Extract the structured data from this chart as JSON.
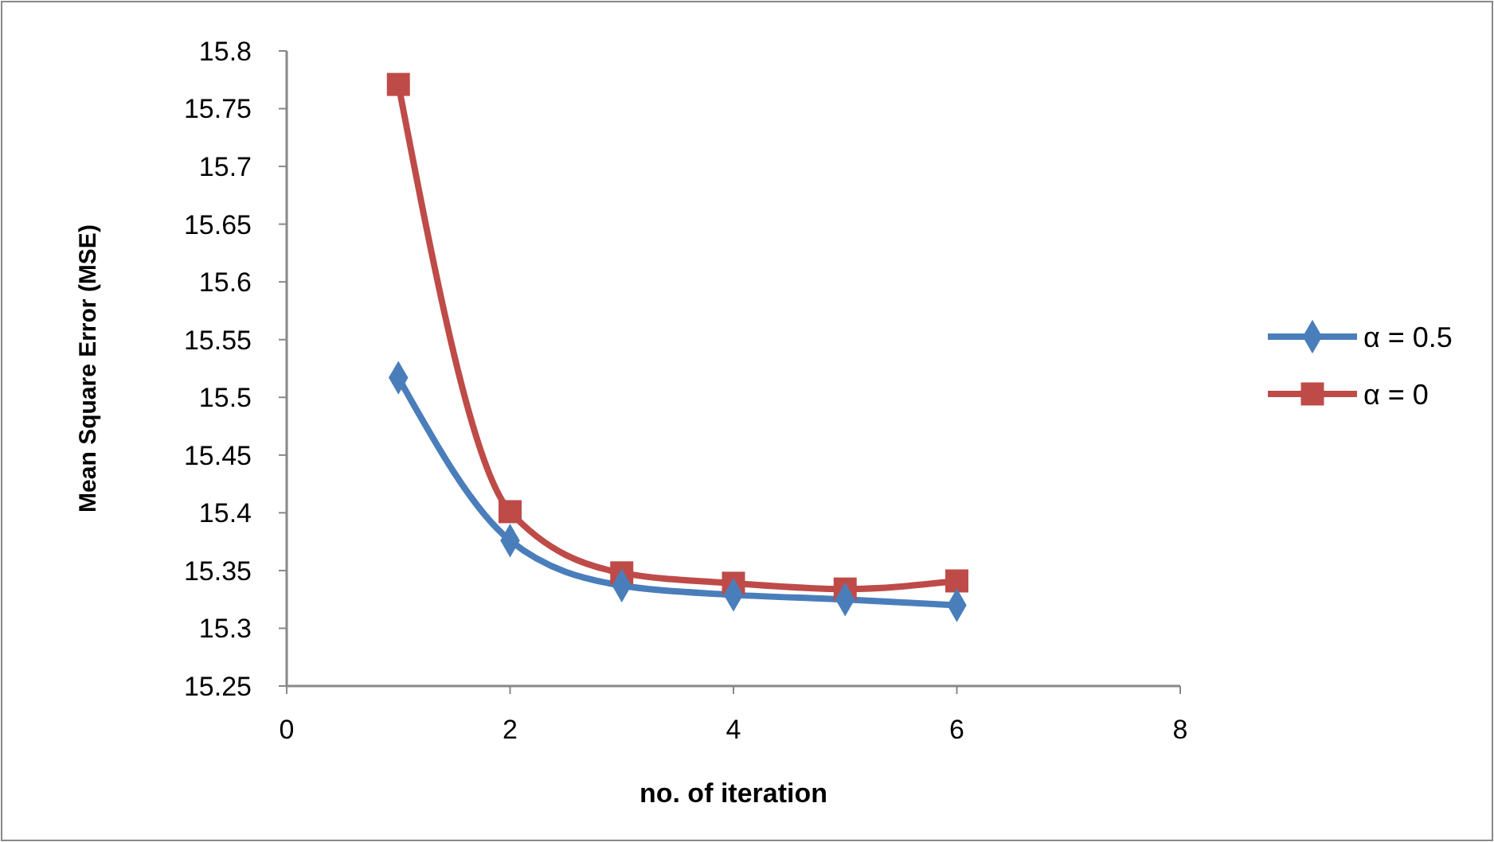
{
  "chart_data": {
    "type": "line",
    "xlabel": "no. of iteration",
    "ylabel": "Mean Square Error (MSE)",
    "x": [
      1,
      2,
      3,
      4,
      5,
      6
    ],
    "series": [
      {
        "name": "α = 0.5",
        "color": "#4a7ebb",
        "marker": "diamond",
        "values": [
          15.517,
          15.376,
          15.337,
          15.329,
          15.325,
          15.32
        ]
      },
      {
        "name": "α = 0",
        "color": "#be4b48",
        "marker": "square",
        "values": [
          15.771,
          15.401,
          15.348,
          15.339,
          15.334,
          15.341
        ]
      }
    ],
    "xlim": [
      0,
      8
    ],
    "xticks": [
      0,
      2,
      4,
      6,
      8
    ],
    "ylim": [
      15.25,
      15.8
    ],
    "yticks": [
      15.25,
      {
        "value": 15.3,
        "label": "15.3"
      },
      15.35,
      {
        "value": 15.4,
        "label": "15.4"
      },
      15.45,
      {
        "value": 15.5,
        "label": "15.5"
      },
      15.55,
      {
        "value": 15.6,
        "label": "15.6"
      },
      15.65,
      {
        "value": 15.7,
        "label": "15.7"
      },
      15.75,
      {
        "value": 15.8,
        "label": "15.8"
      }
    ],
    "grid": false,
    "legend": "right",
    "line_style": "solid"
  }
}
